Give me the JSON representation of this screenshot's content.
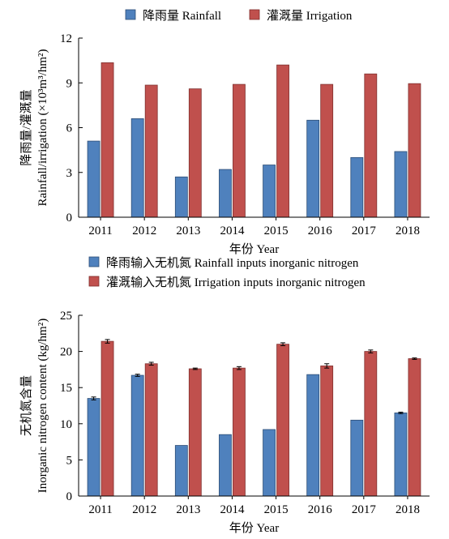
{
  "chart_data": [
    {
      "type": "bar",
      "categories": [
        "2011",
        "2012",
        "2013",
        "2014",
        "2015",
        "2016",
        "2017",
        "2018"
      ],
      "series": [
        {
          "name": "降雨量 Rainfall",
          "values": [
            5.1,
            6.6,
            2.7,
            3.2,
            3.5,
            6.5,
            4.0,
            4.4
          ]
        },
        {
          "name": "灌溉量 Irrigation",
          "values": [
            10.35,
            8.85,
            8.6,
            8.9,
            10.2,
            8.9,
            9.6,
            8.95
          ]
        }
      ],
      "xlabel": "年份 Year",
      "ylabel_cn": "降雨量/灌溉量",
      "ylabel_en": "Rainfall/irrigation (×10³m³/hm²)",
      "ylim": [
        0,
        12
      ],
      "yticks": [
        "0",
        "3",
        "6",
        "9",
        "12"
      ],
      "legend_position": "top",
      "error_bars": false
    },
    {
      "type": "bar",
      "categories": [
        "2011",
        "2012",
        "2013",
        "2014",
        "2015",
        "2016",
        "2017",
        "2018"
      ],
      "series": [
        {
          "name": "降雨输入无机氮 Rainfall inputs inorganic nitrogen",
          "values": [
            13.5,
            16.7,
            7.0,
            8.5,
            9.2,
            16.8,
            10.5,
            11.5
          ],
          "errors": [
            0.2,
            0.15,
            0,
            0,
            0,
            0,
            0,
            0.1
          ]
        },
        {
          "name": "灌溉输入无机氮 Irrigation inputs inorganic nitrogen",
          "values": [
            21.4,
            18.3,
            17.6,
            17.7,
            21.0,
            18.0,
            20.0,
            19.0
          ],
          "errors": [
            0.25,
            0.2,
            0.1,
            0.2,
            0.2,
            0.3,
            0.2,
            0.1
          ]
        }
      ],
      "xlabel": "年份 Year",
      "ylabel_cn": "无机氮含量",
      "ylabel_en": "Inorganic nitrogen content (kg/hm²)",
      "ylim": [
        0,
        25
      ],
      "yticks": [
        "0",
        "5",
        "10",
        "15",
        "20",
        "25"
      ],
      "legend_position": "top",
      "error_bars": true
    }
  ],
  "colors": {
    "rainfall_fill": "#4f81bd",
    "rainfall_stroke": "#2c4d75",
    "irrigation_fill": "#c0504d",
    "irrigation_stroke": "#7f2f2d",
    "axis": "#000000"
  }
}
